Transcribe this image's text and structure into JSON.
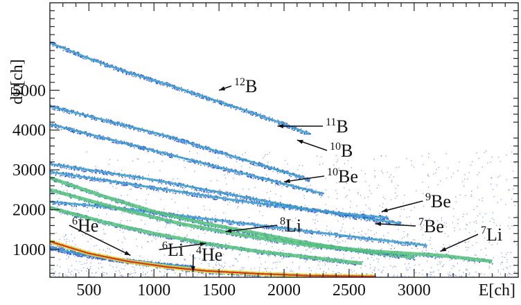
{
  "chart_data": {
    "type": "scatter",
    "xlabel": "E[ch]",
    "ylabel": "dE[ch]",
    "xlim": [
      200,
      3800
    ],
    "ylim": [
      300,
      7200
    ],
    "x_ticks": [
      500,
      1000,
      1500,
      2000,
      2500,
      3000
    ],
    "y_ticks": [
      1000,
      2000,
      3000,
      4000,
      5000
    ],
    "color_scale": [
      "#2a4fd6",
      "#3aa0c8",
      "#56c47a",
      "#d9e63a",
      "#f0a020",
      "#e0301e"
    ],
    "series": [
      {
        "name": "12B",
        "x": [
          200,
          500,
          800,
          1100,
          1400,
          1700,
          2000,
          2200
        ],
        "y": [
          6200,
          5800,
          5450,
          5150,
          4820,
          4500,
          4150,
          3900
        ]
      },
      {
        "name": "11B",
        "x": [
          200,
          500,
          800,
          1100,
          1400,
          1700,
          2000,
          2200
        ],
        "y": [
          4600,
          4350,
          4100,
          3850,
          3550,
          3250,
          2950,
          2750
        ]
      },
      {
        "name": "10B",
        "x": [
          200,
          500,
          800,
          1100,
          1400,
          1700,
          2000,
          2300
        ],
        "y": [
          4150,
          3900,
          3650,
          3400,
          3150,
          2900,
          2650,
          2400
        ]
      },
      {
        "name": "10Be",
        "x": [
          200,
          600,
          1000,
          1400,
          1800,
          2200,
          2600,
          2900
        ],
        "y": [
          3150,
          2950,
          2750,
          2500,
          2250,
          2000,
          1800,
          1650
        ]
      },
      {
        "name": "9Be",
        "x": [
          200,
          700,
          1200,
          1700,
          2200,
          2600,
          2800
        ],
        "y": [
          2950,
          2700,
          2450,
          2200,
          2000,
          1850,
          1800
        ]
      },
      {
        "name": "7Be",
        "x": [
          200,
          700,
          1200,
          1700,
          2200,
          2700,
          3100
        ],
        "y": [
          2200,
          2050,
          1850,
          1650,
          1450,
          1250,
          1100
        ]
      },
      {
        "name": "8Li",
        "x": [
          200,
          600,
          1000,
          1400,
          1800,
          2200,
          2600,
          3000
        ],
        "y": [
          2800,
          2350,
          1950,
          1650,
          1400,
          1150,
          950,
          800
        ]
      },
      {
        "name": "7Li",
        "x": [
          200,
          700,
          1200,
          1700,
          2200,
          2700,
          3200,
          3600
        ],
        "y": [
          2500,
          2050,
          1650,
          1350,
          1100,
          950,
          850,
          700
        ]
      },
      {
        "name": "6Li",
        "x": [
          200,
          600,
          1000,
          1400,
          1800,
          2200,
          2600
        ],
        "y": [
          2050,
          1700,
          1400,
          1150,
          950,
          800,
          650
        ]
      },
      {
        "name": "6He",
        "x": [
          200,
          400,
          700,
          1000,
          1300
        ],
        "y": [
          1050,
          900,
          750,
          650,
          550
        ]
      },
      {
        "name": "4He",
        "x": [
          200,
          500,
          800,
          1100,
          1400,
          1800,
          2200,
          2700
        ],
        "y": [
          1200,
          900,
          700,
          560,
          460,
          390,
          340,
          320
        ]
      }
    ],
    "annotations": [
      {
        "element": "12",
        "symbol": "B",
        "points_to": {
          "x": 1500,
          "y": 5000
        }
      },
      {
        "element": "11",
        "symbol": "B",
        "points_to": {
          "x": 1950,
          "y": 4100
        }
      },
      {
        "element": "10",
        "symbol": "B",
        "points_to": {
          "x": 2100,
          "y": 3750
        }
      },
      {
        "element": "10",
        "symbol": "Be",
        "points_to": {
          "x": 2000,
          "y": 2700
        }
      },
      {
        "element": "9",
        "symbol": "Be",
        "points_to": {
          "x": 2750,
          "y": 1950
        }
      },
      {
        "element": "7",
        "symbol": "Be",
        "points_to": {
          "x": 2700,
          "y": 1650
        }
      },
      {
        "element": "7",
        "symbol": "Li",
        "points_to": {
          "x": 3200,
          "y": 950
        }
      },
      {
        "element": "8",
        "symbol": "Li",
        "points_to": {
          "x": 1550,
          "y": 1450
        }
      },
      {
        "element": "6",
        "symbol": "Li",
        "points_to": {
          "x": 1400,
          "y": 1150
        }
      },
      {
        "element": "6",
        "symbol": "He",
        "points_to": {
          "x": 820,
          "y": 850
        }
      },
      {
        "element": "4",
        "symbol": "He",
        "points_to": {
          "x": 1300,
          "y": 430
        }
      }
    ]
  }
}
